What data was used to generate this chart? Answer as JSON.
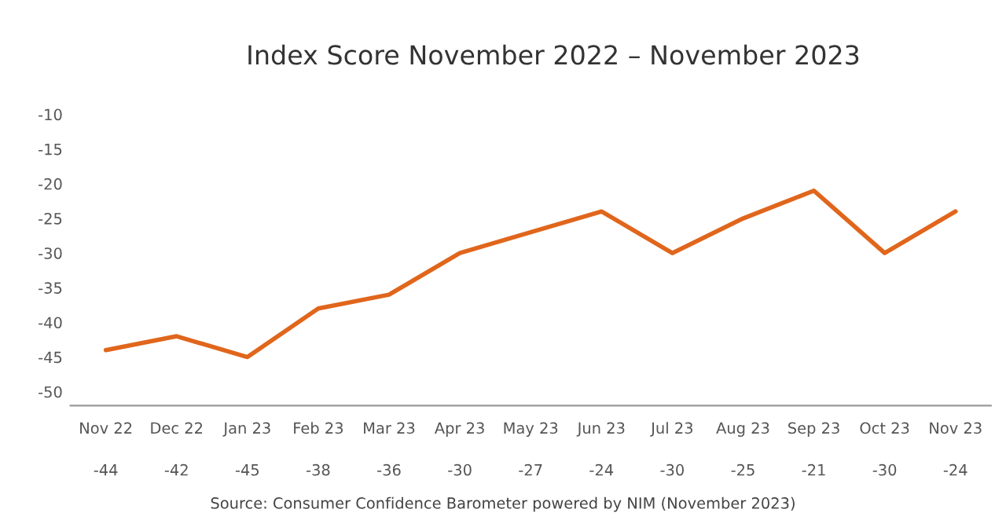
{
  "chart_data": {
    "type": "line",
    "title": "Index Score November 2022 – November 2023",
    "categories": [
      "Nov 22",
      "Dec 22",
      "Jan 23",
      "Feb 23",
      "Mar 23",
      "Apr 23",
      "May 23",
      "Jun 23",
      "Jul 23",
      "Aug 23",
      "Sep 23",
      "Oct 23",
      "Nov 23"
    ],
    "series": [
      {
        "color": "#e0661c",
        "values": [
          -44,
          -42,
          -45,
          -38,
          -36,
          -30,
          -27,
          -24,
          -30,
          -25,
          -21,
          -30,
          -24
        ]
      }
    ],
    "ylim": [
      -52,
      -10
    ],
    "yticks": [
      -50,
      -45,
      -40,
      -35,
      -30,
      -25,
      -20,
      -15,
      -10
    ],
    "data_labels": true,
    "grid": false,
    "legend": false,
    "marker": "none",
    "line_style": "solid",
    "annotations": [
      "Source: Consumer Confidence Barometer powered by NIM (November 2023)"
    ]
  }
}
